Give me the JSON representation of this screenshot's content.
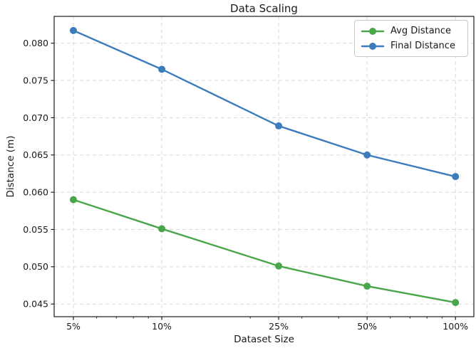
{
  "chart_data": {
    "type": "line",
    "title": "Data Scaling",
    "xlabel": "Dataset Size",
    "ylabel": "Distance (m)",
    "x_scale": "log",
    "categories": [
      "5%",
      "10%",
      "25%",
      "50%",
      "100%"
    ],
    "x_values": [
      5,
      10,
      25,
      50,
      100
    ],
    "series": [
      {
        "name": "Avg Distance",
        "color": "#4aa64a",
        "values": [
          0.059,
          0.0551,
          0.0501,
          0.0474,
          0.0452
        ]
      },
      {
        "name": "Final Distance",
        "color": "#3c7cbc",
        "values": [
          0.0817,
          0.0765,
          0.0689,
          0.065,
          0.0621
        ]
      }
    ],
    "xlim": [
      4.3,
      115.5
    ],
    "ylim": [
      0.0433,
      0.0836
    ],
    "yticks": [
      0.045,
      0.05,
      0.055,
      0.06,
      0.065,
      0.07,
      0.075,
      0.08
    ],
    "ytick_labels": [
      "0.045",
      "0.050",
      "0.055",
      "0.060",
      "0.065",
      "0.070",
      "0.075",
      "0.080"
    ],
    "x_minor_ticks": [
      6,
      7,
      8,
      9,
      20,
      30,
      40,
      60,
      70,
      80,
      90
    ],
    "grid": true,
    "grid_style": "dashed",
    "legend_position": "upper right"
  },
  "colors": {
    "grid": "#cfcfcf",
    "spine": "#1a1a1a",
    "tick": "#1a1a1a",
    "text": "#1a1a1a"
  }
}
